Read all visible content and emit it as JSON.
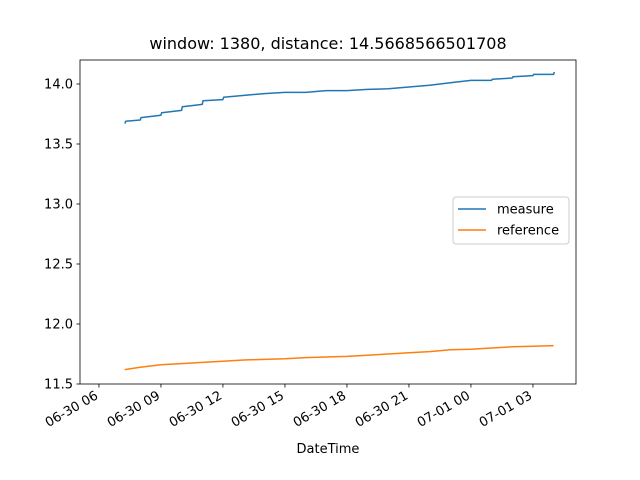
{
  "chart_data": {
    "type": "line",
    "title": "window: 1380, distance: 14.5668566501708",
    "xlabel": "DateTime",
    "ylabel": "",
    "x_ticks": [
      "06-30 06",
      "06-30 09",
      "06-30 12",
      "06-30 15",
      "06-30 18",
      "06-30 21",
      "07-01 00",
      "07-01 03"
    ],
    "y_ticks": [
      "11.5",
      "12.0",
      "12.5",
      "13.0",
      "13.5",
      "14.0"
    ],
    "xlim": [
      "06-30 05:05",
      "07-01 05:05"
    ],
    "ylim": [
      11.5,
      14.2
    ],
    "grid": false,
    "legend_position": "center-right",
    "series": [
      {
        "name": "measure",
        "color": "#1f77b4",
        "points": [
          [
            "06-30 07:15",
            13.67
          ],
          [
            "06-30 07:18",
            13.69
          ],
          [
            "06-30 08:00",
            13.7
          ],
          [
            "06-30 08:02",
            13.72
          ],
          [
            "06-30 09:00",
            13.74
          ],
          [
            "06-30 09:02",
            13.76
          ],
          [
            "06-30 10:00",
            13.78
          ],
          [
            "06-30 10:02",
            13.81
          ],
          [
            "06-30 11:00",
            13.83
          ],
          [
            "06-30 11:02",
            13.86
          ],
          [
            "06-30 12:00",
            13.87
          ],
          [
            "06-30 12:02",
            13.89
          ],
          [
            "06-30 14:00",
            13.92
          ],
          [
            "06-30 15:00",
            13.93
          ],
          [
            "06-30 16:00",
            13.93
          ],
          [
            "06-30 17:00",
            13.945
          ],
          [
            "06-30 18:00",
            13.945
          ],
          [
            "06-30 19:00",
            13.955
          ],
          [
            "06-30 20:00",
            13.96
          ],
          [
            "06-30 22:00",
            13.99
          ],
          [
            "06-30 23:00",
            14.01
          ],
          [
            "07-01 00:00",
            14.03
          ],
          [
            "07-01 01:00",
            14.03
          ],
          [
            "07-01 01:02",
            14.04
          ],
          [
            "07-01 02:00",
            14.05
          ],
          [
            "07-01 02:02",
            14.06
          ],
          [
            "07-01 03:00",
            14.07
          ],
          [
            "07-01 03:02",
            14.08
          ],
          [
            "07-01 04:00",
            14.08
          ],
          [
            "07-01 04:02",
            14.1
          ]
        ]
      },
      {
        "name": "reference",
        "color": "#ff7f0e",
        "points": [
          [
            "06-30 07:15",
            11.62
          ],
          [
            "06-30 08:00",
            11.64
          ],
          [
            "06-30 09:00",
            11.66
          ],
          [
            "06-30 10:00",
            11.67
          ],
          [
            "06-30 11:00",
            11.68
          ],
          [
            "06-30 12:00",
            11.69
          ],
          [
            "06-30 13:00",
            11.7
          ],
          [
            "06-30 14:00",
            11.705
          ],
          [
            "06-30 15:00",
            11.71
          ],
          [
            "06-30 16:00",
            11.72
          ],
          [
            "06-30 17:00",
            11.725
          ],
          [
            "06-30 18:00",
            11.73
          ],
          [
            "06-30 19:00",
            11.74
          ],
          [
            "06-30 20:00",
            11.75
          ],
          [
            "06-30 21:00",
            11.76
          ],
          [
            "06-30 22:00",
            11.77
          ],
          [
            "06-30 23:00",
            11.785
          ],
          [
            "07-01 00:00",
            11.79
          ],
          [
            "07-01 01:00",
            11.8
          ],
          [
            "07-01 02:00",
            11.81
          ],
          [
            "07-01 03:00",
            11.815
          ],
          [
            "07-01 04:00",
            11.82
          ]
        ]
      }
    ]
  }
}
